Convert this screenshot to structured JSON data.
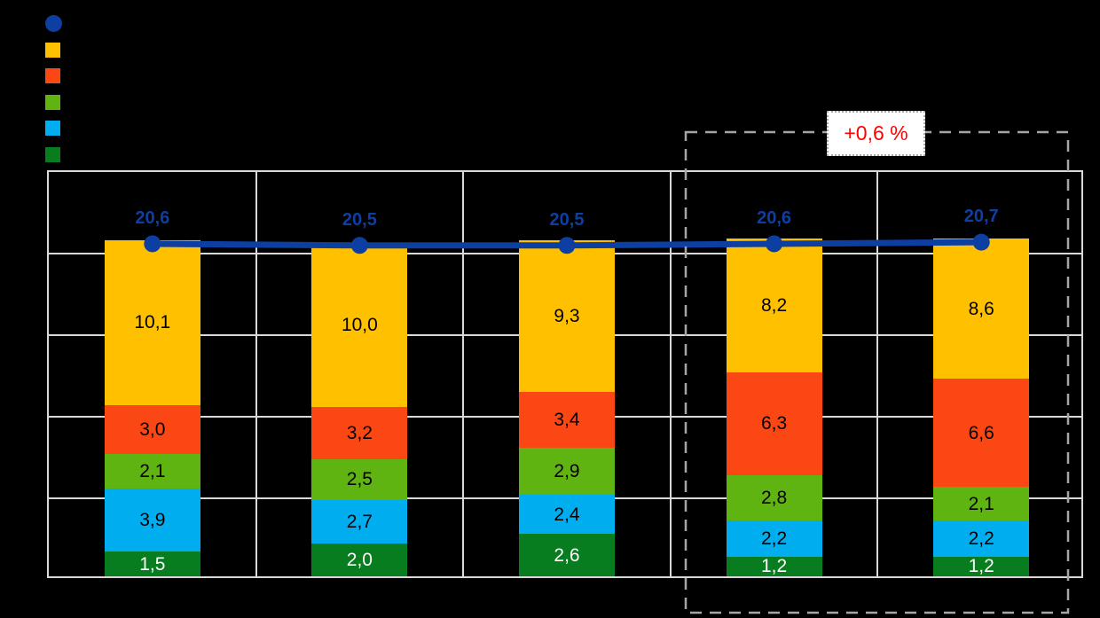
{
  "colors": {
    "background": "#000000",
    "grid": "#D9D9D9",
    "plot_border": "#D9D9D9",
    "line": "#0D3FA2",
    "line_label": "#0D3FA2",
    "highlight_border": "#A6A6A6",
    "annotation_text": "#FF0000",
    "annotation_bg": "#FFFFFF"
  },
  "legend": {
    "items": [
      {
        "marker": "circle",
        "color": "#0D3FA2",
        "label": ""
      },
      {
        "marker": "square",
        "color": "#FFC000",
        "label": ""
      },
      {
        "marker": "square",
        "color": "#FB4713",
        "label": ""
      },
      {
        "marker": "square",
        "color": "#5FB412",
        "label": ""
      },
      {
        "marker": "square",
        "color": "#00AEEF",
        "label": ""
      },
      {
        "marker": "square",
        "color": "#077D1F",
        "label": ""
      }
    ]
  },
  "annotation": {
    "text": "+0,6 %"
  },
  "chart_data": {
    "type": "bar",
    "subtype": "stacked-bars-with-total-line",
    "title": "",
    "xlabel": "",
    "ylabel": "",
    "categories": [
      "",
      "",
      "",
      "",
      ""
    ],
    "ylim": [
      0,
      25
    ],
    "grid": true,
    "legend_position": "top-left",
    "decimal_separator": ",",
    "series_bottom_to_top": [
      {
        "name": "dark-green-segment",
        "color": "#077D1F",
        "label_color": "#FFFFFF",
        "values": [
          1.5,
          2.0,
          2.6,
          1.2,
          1.2
        ],
        "labels": [
          "1,5",
          "2,0",
          "2,6",
          "1,2",
          "1,2"
        ]
      },
      {
        "name": "light-blue-segment",
        "color": "#00AEEF",
        "label_color": "#000000",
        "values": [
          3.9,
          2.7,
          2.4,
          2.2,
          2.2
        ],
        "labels": [
          "3,9",
          "2,7",
          "2,4",
          "2,2",
          "2,2"
        ]
      },
      {
        "name": "green-segment",
        "color": "#5FB412",
        "label_color": "#000000",
        "values": [
          2.1,
          2.5,
          2.9,
          2.8,
          2.1
        ],
        "labels": [
          "2,1",
          "2,5",
          "2,9",
          "2,8",
          "2,1"
        ]
      },
      {
        "name": "orange-segment",
        "color": "#FB4713",
        "label_color": "#000000",
        "values": [
          3.0,
          3.2,
          3.4,
          6.3,
          6.6
        ],
        "labels": [
          "3,0",
          "3,2",
          "3,4",
          "6,3",
          "6,6"
        ]
      },
      {
        "name": "yellow-segment",
        "color": "#FFC000",
        "label_color": "#000000",
        "values": [
          10.1,
          10.0,
          9.3,
          8.2,
          8.6
        ],
        "labels": [
          "10,1",
          "10,0",
          "9,3",
          "8,2",
          "8,6"
        ]
      }
    ],
    "line": {
      "name": "total-line",
      "color": "#0D3FA2",
      "values": [
        20.6,
        20.5,
        20.5,
        20.6,
        20.7
      ],
      "labels": [
        "20,6",
        "20,5",
        "20,5",
        "20,6",
        "20,7"
      ]
    },
    "highlight": {
      "group_indices": [
        3,
        4
      ],
      "label": "+0,6 %"
    }
  }
}
